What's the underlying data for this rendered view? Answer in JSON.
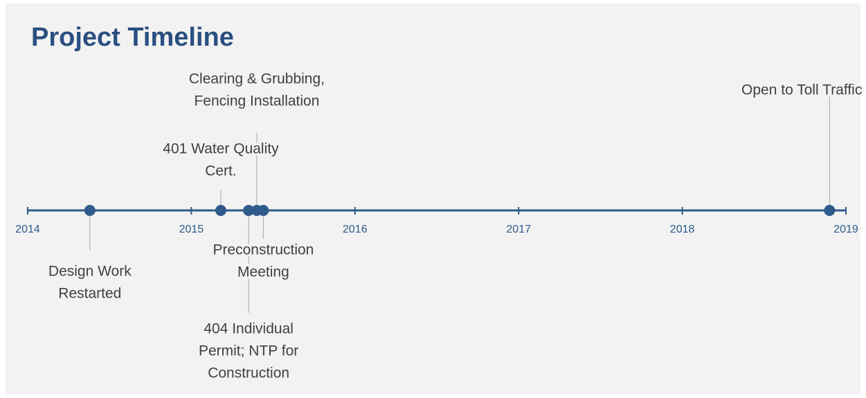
{
  "chart_data": {
    "type": "timeline",
    "title": "Project Timeline",
    "xlim": [
      2014,
      2019
    ],
    "xticks": [
      2014,
      2015,
      2016,
      2017,
      2018,
      2019
    ],
    "color": "#2e5a8c",
    "events": [
      {
        "label": [
          "Design Work",
          "Restarted"
        ],
        "x": 2014.38
      },
      {
        "label": [
          "401 Water Quality",
          "Cert."
        ],
        "x": 2015.18
      },
      {
        "label": [
          "404 Individual",
          "Permit; NTP for",
          "Construction"
        ],
        "x": 2015.35
      },
      {
        "label": [
          "Clearing & Grubbing,",
          "Fencing Installation"
        ],
        "x": 2015.4
      },
      {
        "label": [
          "Preconstruction",
          "Meeting"
        ],
        "x": 2015.44
      },
      {
        "label": [
          "Open to Toll Traffic"
        ],
        "x": 2018.9
      }
    ]
  }
}
